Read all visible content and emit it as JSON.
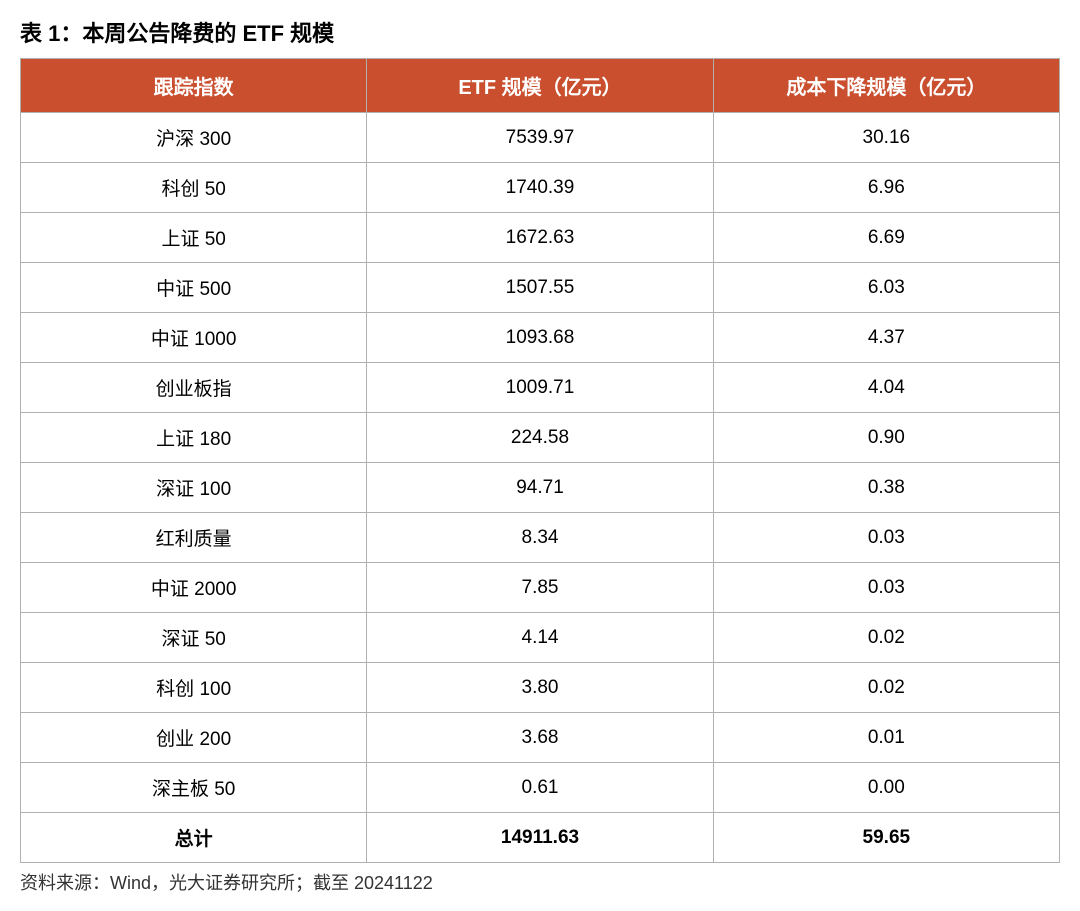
{
  "title": "表 1：本周公告降费的 ETF 规模",
  "table": {
    "columns": [
      "跟踪指数",
      "ETF 规模（亿元）",
      "成本下降规模（亿元）"
    ],
    "rows": [
      [
        "沪深 300",
        "7539.97",
        "30.16"
      ],
      [
        "科创 50",
        "1740.39",
        "6.96"
      ],
      [
        "上证 50",
        "1672.63",
        "6.69"
      ],
      [
        "中证 500",
        "1507.55",
        "6.03"
      ],
      [
        "中证 1000",
        "1093.68",
        "4.37"
      ],
      [
        "创业板指",
        "1009.71",
        "4.04"
      ],
      [
        "上证 180",
        "224.58",
        "0.90"
      ],
      [
        "深证 100",
        "94.71",
        "0.38"
      ],
      [
        "红利质量",
        "8.34",
        "0.03"
      ],
      [
        "中证 2000",
        "7.85",
        "0.03"
      ],
      [
        "深证 50",
        "4.14",
        "0.02"
      ],
      [
        "科创 100",
        "3.80",
        "0.02"
      ],
      [
        "创业 200",
        "3.68",
        "0.01"
      ],
      [
        "深主板 50",
        "0.61",
        "0.00"
      ]
    ],
    "total": [
      "总计",
      "14911.63",
      "59.65"
    ],
    "header_bg": "#c94f2e",
    "header_text_color": "#ffffff",
    "border_color": "#b0b0b0",
    "body_bg": "#ffffff",
    "title_fontsize": 22,
    "header_fontsize": 20,
    "cell_fontsize": 19
  },
  "source": "资料来源：Wind，光大证券研究所；截至 20241122"
}
